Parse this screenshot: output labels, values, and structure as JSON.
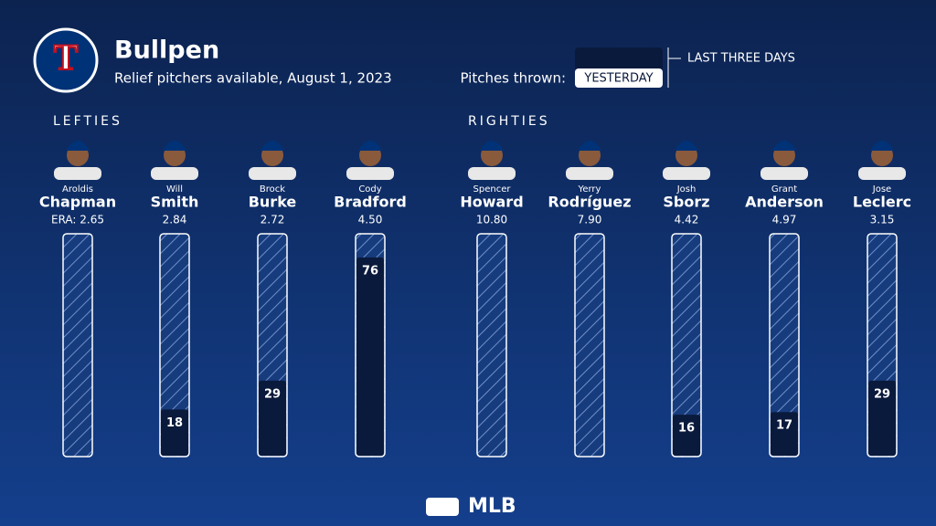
{
  "chart_data": {
    "type": "bar",
    "logo": "T",
    "title": "Bullpen",
    "subtitle": "Relief pitchers available, August 1, 2023",
    "legend_title": "Pitches thrown:",
    "legend_yesterday": "YESTERDAY",
    "legend_three_days": "LAST THREE DAYS",
    "groups": [
      "LEFTIES",
      "RIGHTIES"
    ],
    "first_names": [
      "Aroldis",
      "Will",
      "Brock",
      "Cody",
      "Spencer",
      "Yerry",
      "Josh",
      "Grant",
      "Jose"
    ],
    "categories": [
      "Chapman",
      "Smith",
      "Burke",
      "Bradford",
      "Howard",
      "Rodríguez",
      "Sborz",
      "Anderson",
      "Leclerc"
    ],
    "eras": [
      "ERA: 2.65",
      "2.84",
      "2.72",
      "4.50",
      "10.80",
      "7.90",
      "4.42",
      "4.97",
      "3.15"
    ],
    "values": [
      null,
      18,
      29,
      76,
      null,
      null,
      16,
      17,
      29
    ],
    "ylim": [
      0,
      85
    ],
    "color": "#0a1a3c",
    "footer": "MLB"
  }
}
